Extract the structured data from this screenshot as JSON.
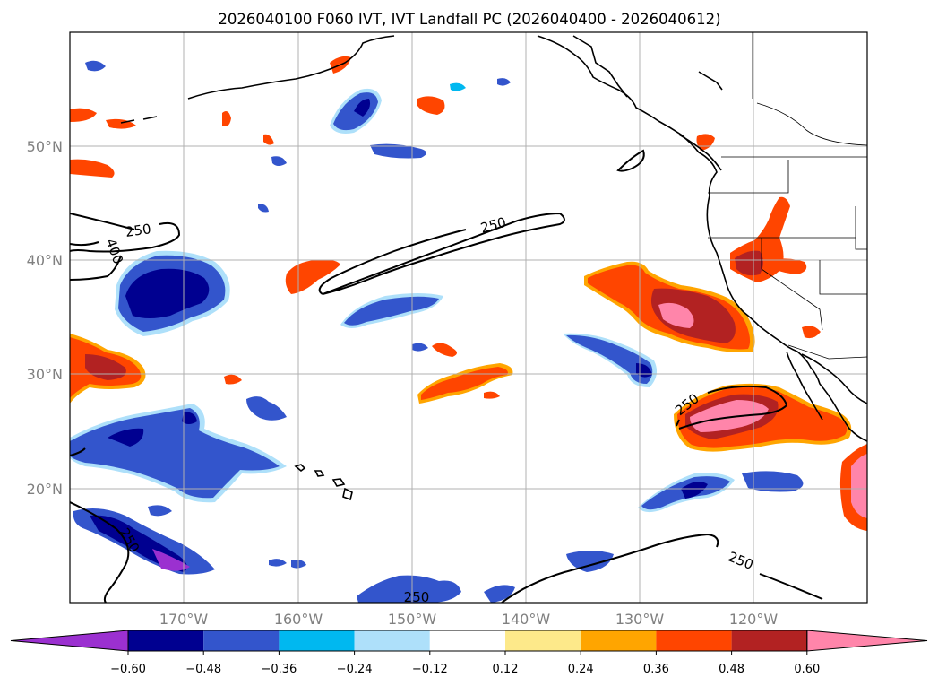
{
  "title": "2026040100 F060 IVT, IVT Landfall PC (2026040400 - 2026040612)",
  "lat_labels": [
    "50°N",
    "40°N",
    "30°N",
    "20°N"
  ],
  "lon_labels": [
    "170°W",
    "160°W",
    "150°W",
    "140°W",
    "130°W",
    "120°W"
  ],
  "colorbar": {
    "ticks": [
      "−0.60",
      "−0.48",
      "−0.36",
      "−0.24",
      "−0.12",
      "0.12",
      "0.24",
      "0.36",
      "0.48",
      "0.60"
    ],
    "colors": [
      "#9b30d0",
      "#000090",
      "#3355cc",
      "#00b8f0",
      "#aee0fa",
      "#ffffff",
      "#fde98a",
      "#ffa500",
      "#ff4500",
      "#b22222",
      "#ff85aa"
    ]
  },
  "contour_labels": {
    "c1": "250",
    "c2": "400",
    "c3": "250",
    "c4": "250",
    "c5": "250",
    "c6": "250",
    "c7": "250"
  },
  "palette": {
    "purple": "#9b30d0",
    "navy": "#000090",
    "blue": "#3355cc",
    "cyan": "#00b8f0",
    "lightblue": "#aee0fa",
    "yellow": "#fde98a",
    "orange": "#ffa500",
    "redorange": "#ff4500",
    "darkred": "#b22222",
    "pink": "#ff85aa"
  }
}
